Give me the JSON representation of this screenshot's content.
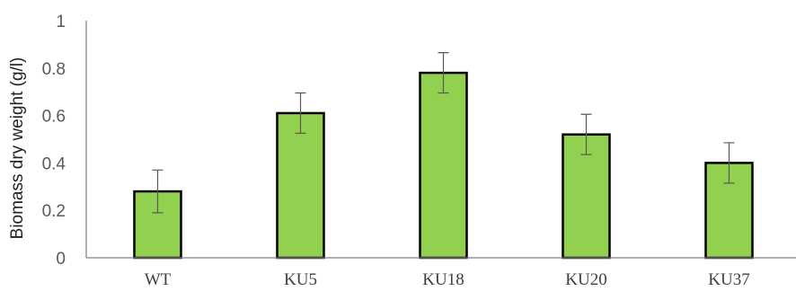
{
  "chart_data": {
    "type": "bar",
    "categories": [
      "WT",
      "KU5",
      "KU18",
      "KU20",
      "KU37"
    ],
    "values": [
      0.28,
      0.61,
      0.78,
      0.52,
      0.4
    ],
    "errors": [
      0.09,
      0.085,
      0.085,
      0.085,
      0.085
    ],
    "title": "",
    "xlabel": "",
    "ylabel": "Biomass dry weight (g/l)",
    "ylim": [
      0,
      1
    ],
    "yticks": [
      0,
      0.2,
      0.4,
      0.6,
      0.8,
      1
    ],
    "ytick_labels": [
      "0",
      "0.2",
      "0.4",
      "0.6",
      "0.8",
      "1"
    ],
    "grid": false,
    "legend": "none",
    "colors": {
      "bar_fill": "#92d050",
      "bar_edge": "#000000",
      "axis": "#7f7f7f",
      "error_bar": "#595959"
    }
  }
}
